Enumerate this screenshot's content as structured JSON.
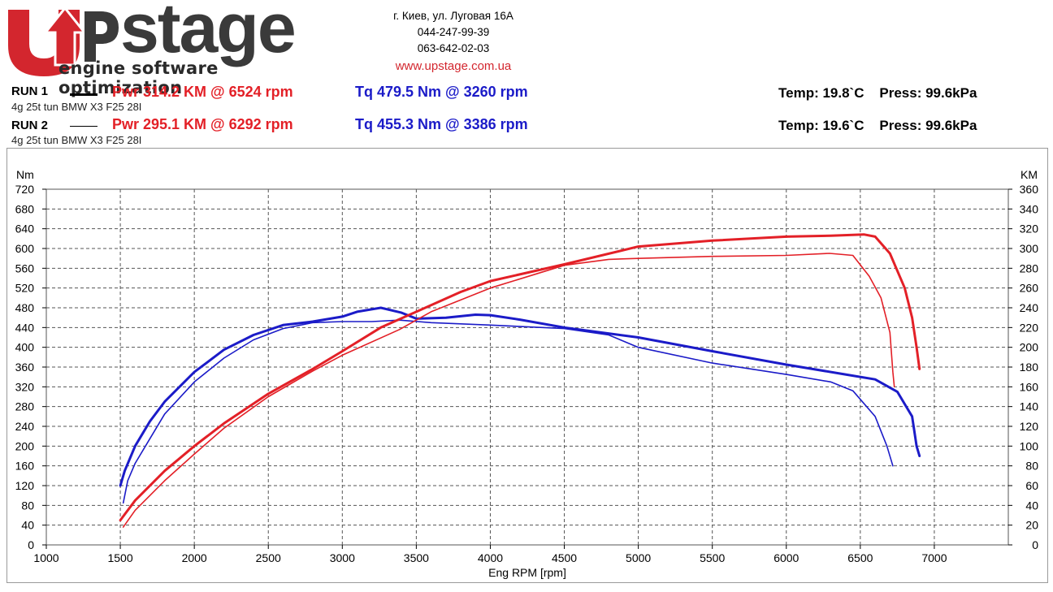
{
  "header": {
    "logo_text": "stage",
    "logo_tagline": "engine software optimization",
    "address": "г. Киев, ул. Луговая 16А",
    "phone1": "044-247-99-39",
    "phone2": "063-642-02-03",
    "website": "www.upstage.com.ua"
  },
  "runs": [
    {
      "label": "RUN 1",
      "description": "4g 25t tun BMW X3 F25 28I",
      "power": "Pwr  314.2 KM @ 6524 rpm",
      "torque": "Tq 479.5 Nm @ 3260 rpm",
      "conditions": "Temp: 19.8`C    Press: 99.6kPa",
      "line_weight": "thick"
    },
    {
      "label": "RUN 2",
      "description": "4g 25t tun BMW X3 F25 28I",
      "power": "Pwr  295.1 KM @ 6292 rpm",
      "torque": "Tq 455.3 Nm @ 3386 rpm",
      "conditions": "Temp: 19.6`C    Press: 99.6kPa",
      "line_weight": "thin"
    }
  ],
  "colors": {
    "power": "#e32027",
    "torque": "#1b1bc8",
    "logo_red": "#d3262e"
  },
  "chart_data": {
    "type": "line",
    "xlabel": "Eng RPM [rpm]",
    "ylabel_left": "Nm",
    "ylabel_right": "KM",
    "xlim": [
      1000,
      7500
    ],
    "xticks": [
      1000,
      1500,
      2000,
      2500,
      3000,
      3500,
      4000,
      4500,
      5000,
      5500,
      6000,
      6500,
      7000
    ],
    "ylim_left": [
      0,
      720
    ],
    "yticks_left": [
      0,
      40,
      80,
      120,
      160,
      200,
      240,
      280,
      320,
      360,
      400,
      440,
      480,
      520,
      560,
      600,
      640,
      680,
      720
    ],
    "ylim_right": [
      0,
      360
    ],
    "yticks_right": [
      0,
      20,
      40,
      60,
      80,
      100,
      120,
      140,
      160,
      180,
      200,
      220,
      240,
      260,
      280,
      300,
      320,
      340,
      360
    ],
    "grid": true,
    "series": [
      {
        "axis": "left",
        "kind": "torque",
        "run": "RUN 1",
        "points": [
          [
            1500,
            120
          ],
          [
            1530,
            150
          ],
          [
            1600,
            200
          ],
          [
            1700,
            250
          ],
          [
            1800,
            290
          ],
          [
            2000,
            350
          ],
          [
            2200,
            395
          ],
          [
            2400,
            425
          ],
          [
            2600,
            445
          ],
          [
            2800,
            452
          ],
          [
            3000,
            462
          ],
          [
            3100,
            472
          ],
          [
            3260,
            480
          ],
          [
            3400,
            470
          ],
          [
            3500,
            458
          ],
          [
            3700,
            460
          ],
          [
            3900,
            466
          ],
          [
            4000,
            465
          ],
          [
            4200,
            456
          ],
          [
            4500,
            440
          ],
          [
            5000,
            420
          ],
          [
            5500,
            392
          ],
          [
            6000,
            365
          ],
          [
            6400,
            345
          ],
          [
            6600,
            335
          ],
          [
            6750,
            310
          ],
          [
            6850,
            260
          ],
          [
            6880,
            200
          ],
          [
            6900,
            180
          ]
        ]
      },
      {
        "axis": "left",
        "kind": "torque",
        "run": "RUN 2",
        "points": [
          [
            1520,
            85
          ],
          [
            1550,
            130
          ],
          [
            1600,
            165
          ],
          [
            1700,
            215
          ],
          [
            1800,
            265
          ],
          [
            2000,
            330
          ],
          [
            2200,
            378
          ],
          [
            2400,
            415
          ],
          [
            2600,
            438
          ],
          [
            2800,
            450
          ],
          [
            3000,
            452
          ],
          [
            3200,
            452
          ],
          [
            3386,
            455
          ],
          [
            3600,
            450
          ],
          [
            4000,
            445
          ],
          [
            4500,
            438
          ],
          [
            4800,
            425
          ],
          [
            5000,
            400
          ],
          [
            5500,
            368
          ],
          [
            6000,
            345
          ],
          [
            6300,
            330
          ],
          [
            6450,
            312
          ],
          [
            6600,
            260
          ],
          [
            6680,
            200
          ],
          [
            6720,
            160
          ]
        ]
      },
      {
        "axis": "right",
        "kind": "power",
        "run": "RUN 1",
        "points": [
          [
            1500,
            25
          ],
          [
            1600,
            45
          ],
          [
            1800,
            75
          ],
          [
            2000,
            100
          ],
          [
            2200,
            123
          ],
          [
            2500,
            153
          ],
          [
            2800,
            178
          ],
          [
            3000,
            196
          ],
          [
            3260,
            220
          ],
          [
            3500,
            236
          ],
          [
            3800,
            256
          ],
          [
            4000,
            267
          ],
          [
            4500,
            284
          ],
          [
            5000,
            302
          ],
          [
            5500,
            308
          ],
          [
            6000,
            312
          ],
          [
            6300,
            313
          ],
          [
            6524,
            314.2
          ],
          [
            6600,
            312
          ],
          [
            6700,
            295
          ],
          [
            6800,
            260
          ],
          [
            6850,
            230
          ],
          [
            6880,
            200
          ],
          [
            6900,
            178
          ]
        ]
      },
      {
        "axis": "right",
        "kind": "power",
        "run": "RUN 2",
        "points": [
          [
            1520,
            18
          ],
          [
            1600,
            35
          ],
          [
            1800,
            65
          ],
          [
            2000,
            92
          ],
          [
            2200,
            118
          ],
          [
            2500,
            150
          ],
          [
            2800,
            176
          ],
          [
            3000,
            192
          ],
          [
            3386,
            218
          ],
          [
            3600,
            236
          ],
          [
            4000,
            260
          ],
          [
            4500,
            283
          ],
          [
            4800,
            289
          ],
          [
            5000,
            290
          ],
          [
            5500,
            292
          ],
          [
            6000,
            293
          ],
          [
            6292,
            295.1
          ],
          [
            6450,
            293
          ],
          [
            6560,
            272
          ],
          [
            6640,
            250
          ],
          [
            6700,
            215
          ],
          [
            6720,
            175
          ],
          [
            6730,
            160
          ]
        ]
      }
    ]
  }
}
